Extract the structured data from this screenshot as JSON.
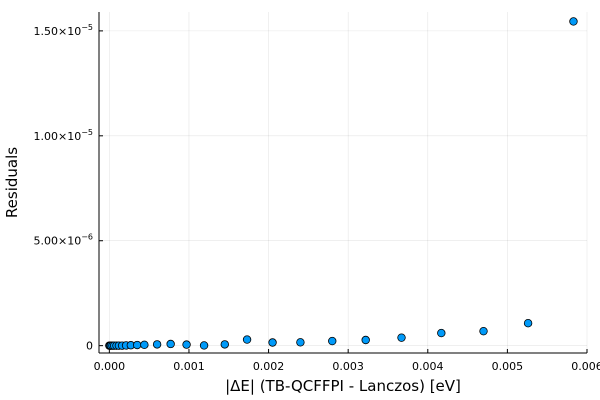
{
  "chart_data": {
    "type": "scatter",
    "xlabel": "|ΔE| (TB-QCFFPI - Lanczos) [eV]",
    "ylabel": "Residuals",
    "xlim": [
      -0.00013,
      0.006
    ],
    "ylim": [
      -3.5e-07,
      1.59e-05
    ],
    "grid": true,
    "legend": "none",
    "marker_color": "#009af9",
    "xticks": [
      {
        "value": 0.0,
        "label": "0.000"
      },
      {
        "value": 0.001,
        "label": "0.001"
      },
      {
        "value": 0.002,
        "label": "0.002"
      },
      {
        "value": 0.003,
        "label": "0.003"
      },
      {
        "value": 0.004,
        "label": "0.004"
      },
      {
        "value": 0.005,
        "label": "0.005"
      },
      {
        "value": 0.006,
        "label": "0.006"
      }
    ],
    "yticks": [
      {
        "value": 0,
        "mantissa": "0",
        "exp": ""
      },
      {
        "value": 5e-06,
        "mantissa": "5.00×10",
        "exp": "−6"
      },
      {
        "value": 1e-05,
        "mantissa": "1.00×10",
        "exp": "−5"
      },
      {
        "value": 1.5e-05,
        "mantissa": "1.50×10",
        "exp": "−5"
      }
    ],
    "points": [
      {
        "x": 0.0,
        "y": 0
      },
      {
        "x": 1e-05,
        "y": 0
      },
      {
        "x": 2e-05,
        "y": 0
      },
      {
        "x": 4e-05,
        "y": 0
      },
      {
        "x": 6e-05,
        "y": 0
      },
      {
        "x": 9e-05,
        "y": 0
      },
      {
        "x": 0.00012,
        "y": 0
      },
      {
        "x": 0.00016,
        "y": 0
      },
      {
        "x": 0.00021,
        "y": 1e-08
      },
      {
        "x": 0.00027,
        "y": 2e-08
      },
      {
        "x": 0.00035,
        "y": 3e-08
      },
      {
        "x": 0.00044,
        "y": 4e-08
      },
      {
        "x": 0.0006,
        "y": 6e-08
      },
      {
        "x": 0.00077,
        "y": 8e-08
      },
      {
        "x": 0.00097,
        "y": 5e-08
      },
      {
        "x": 0.00119,
        "y": 1e-08
      },
      {
        "x": 0.00145,
        "y": 6e-08
      },
      {
        "x": 0.00173,
        "y": 2.9e-07
      },
      {
        "x": 0.00205,
        "y": 1.5e-07
      },
      {
        "x": 0.0024,
        "y": 1.6e-07
      },
      {
        "x": 0.0028,
        "y": 2.2e-07
      },
      {
        "x": 0.00322,
        "y": 2.7e-07
      },
      {
        "x": 0.00367,
        "y": 3.8e-07
      },
      {
        "x": 0.00417,
        "y": 6e-07
      },
      {
        "x": 0.0047,
        "y": 6.9e-07
      },
      {
        "x": 0.00526,
        "y": 1.07e-06
      },
      {
        "x": 0.00583,
        "y": 1.545e-05
      }
    ]
  }
}
